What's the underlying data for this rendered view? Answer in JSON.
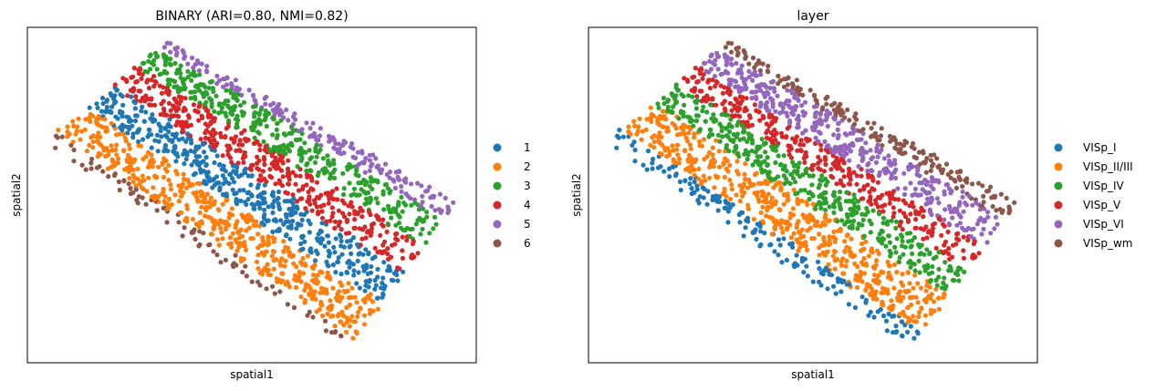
{
  "chart_data": [
    {
      "type": "scatter",
      "title": "BINARY (ARI=0.80, NMI=0.82)",
      "xlabel": "spatial1",
      "ylabel": "spatial2",
      "ticks": "none",
      "grid": false,
      "legend": {
        "placement": "right",
        "entries": [
          "1",
          "2",
          "3",
          "4",
          "5",
          "6"
        ]
      },
      "colors": [
        "#1f77b4",
        "#ff7f0e",
        "#2ca02c",
        "#d62728",
        "#9467bd",
        "#8c564b"
      ],
      "cluster_order_along_x": [
        "6",
        "2",
        "1",
        "4",
        "3",
        "5"
      ]
    },
    {
      "type": "scatter",
      "title": "layer",
      "xlabel": "spatial1",
      "ylabel": "spatial2",
      "ticks": "none",
      "grid": false,
      "legend": {
        "placement": "right",
        "entries": [
          "VISp_I",
          "VISp_II/III",
          "VISp_IV",
          "VISp_V",
          "VISp_VI",
          "VISp_wm"
        ]
      },
      "colors": [
        "#1f77b4",
        "#ff7f0e",
        "#2ca02c",
        "#d62728",
        "#9467bd",
        "#8c564b"
      ],
      "layer_order_along_x": [
        "VISp_I",
        "VISp_II/III",
        "VISp_IV",
        "VISp_V",
        "VISp_VI",
        "VISp_wm"
      ]
    }
  ]
}
